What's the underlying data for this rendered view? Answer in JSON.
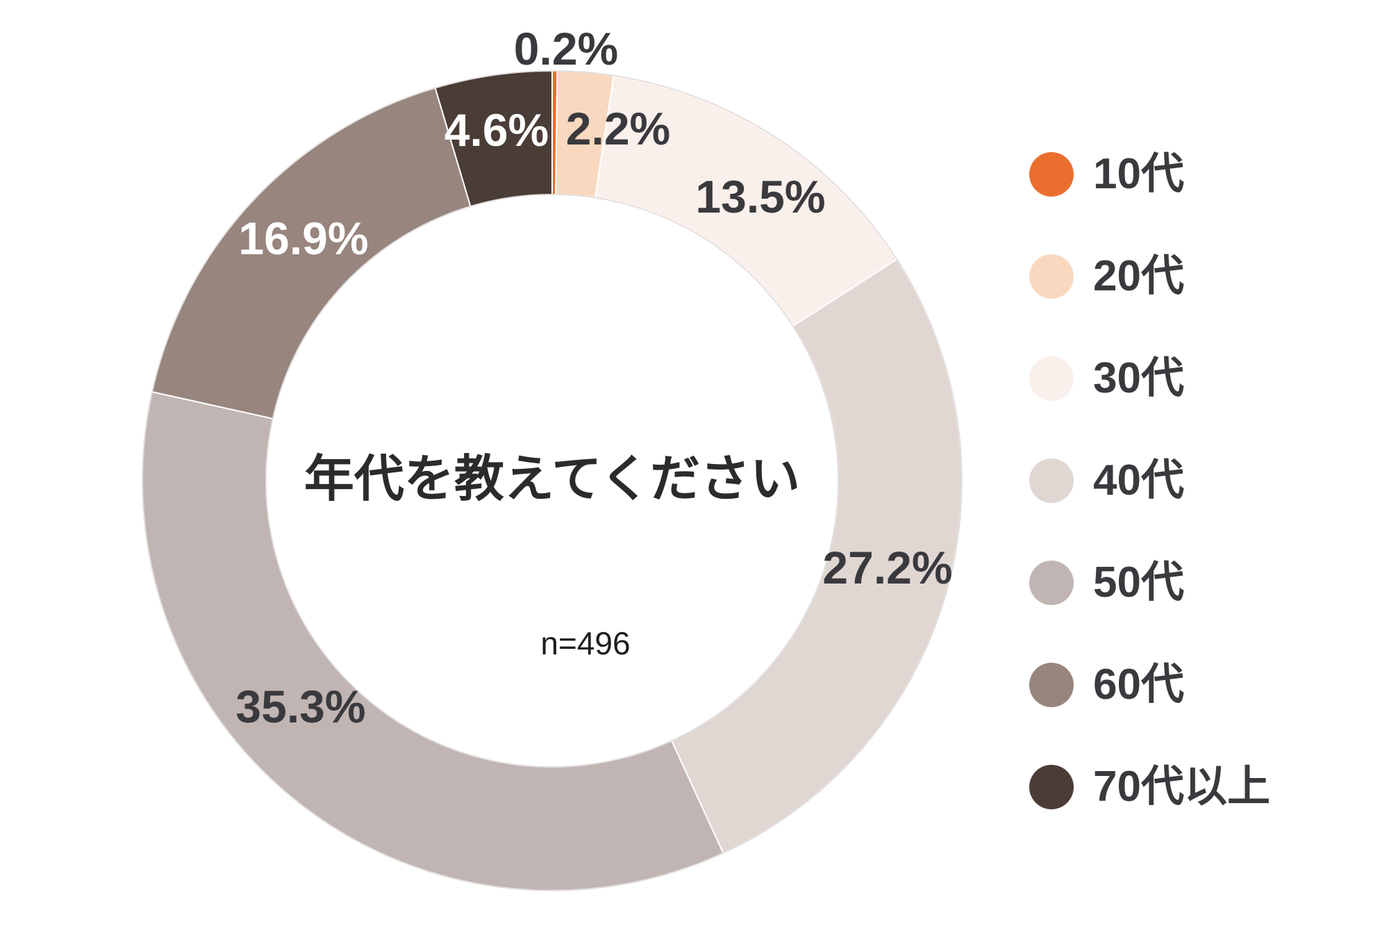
{
  "chart": {
    "center_title": "年代を教えてください",
    "sample_size": "n=496"
  },
  "chart_data": {
    "type": "pie",
    "subtype": "donut",
    "title": "年代を教えてください",
    "sample_size_label": "n=496",
    "n": 496,
    "unit": "%",
    "legend_position": "right",
    "categories": [
      "10代",
      "20代",
      "30代",
      "40代",
      "50代",
      "60代",
      "70代以上"
    ],
    "values": [
      0.2,
      2.2,
      13.5,
      27.2,
      35.3,
      16.9,
      4.6
    ],
    "data_labels": [
      "0.2%",
      "2.2%",
      "13.5%",
      "27.2%",
      "35.3%",
      "16.9%",
      "4.6%"
    ],
    "colors": [
      "#EC6E2F",
      "#F8D9C0",
      "#FAF0EB",
      "#E0D7D3",
      "#C0B5B2",
      "#97857E",
      "#4A3C37"
    ],
    "label_styles": [
      "dark",
      "dark",
      "dark",
      "dark",
      "dark",
      "light",
      "light"
    ]
  },
  "legend": {
    "items": [
      {
        "label": "10代",
        "color": "#EC6E2F"
      },
      {
        "label": "20代",
        "color": "#F8D9C0"
      },
      {
        "label": "30代",
        "color": "#FAF0EB"
      },
      {
        "label": "40代",
        "color": "#E0D7D3"
      },
      {
        "label": "50代",
        "color": "#C0B5B2"
      },
      {
        "label": "60代",
        "color": "#97857E"
      },
      {
        "label": "70代以上",
        "color": "#4A3C37"
      }
    ]
  }
}
